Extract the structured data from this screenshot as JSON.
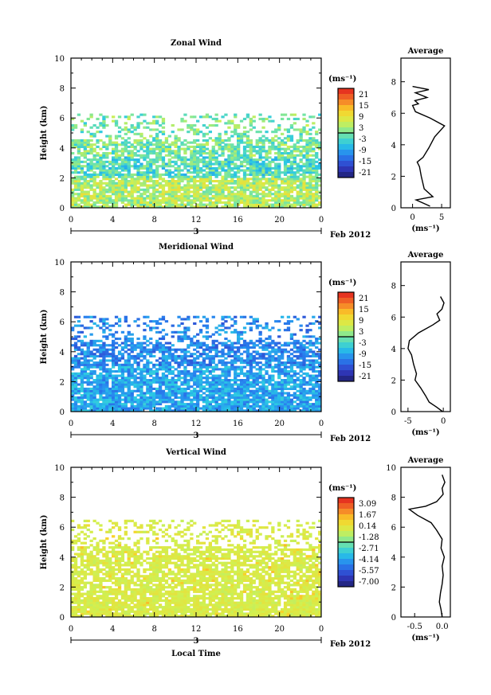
{
  "chart_data": [
    {
      "type": "heatmap",
      "title": "Zonal Wind",
      "ylabel": "Height (km)",
      "xlabel": "",
      "xlim": [
        0,
        24
      ],
      "ylim": [
        0,
        10
      ],
      "x_ticks": [
        "0",
        "4",
        "8",
        "12",
        "16",
        "20",
        "0"
      ],
      "y_ticks": [
        "0",
        "2",
        "4",
        "6",
        "8",
        "10"
      ],
      "date_day": "3",
      "date_label": "Feb 2012",
      "colorbar": {
        "unit": "(ms⁻¹)",
        "ticks": [
          "21",
          "15",
          "9",
          "3",
          "-3",
          "-9",
          "-15",
          "-21"
        ],
        "range": [
          -24,
          24
        ]
      },
      "data_top_km": 6.3,
      "profile": {
        "title": "Average",
        "xlabel": "(ms⁻¹)",
        "x_ticks": [
          "0",
          "5"
        ],
        "xlim": [
          -2,
          6.5
        ],
        "y_ticks": [
          "0",
          "2",
          "4",
          "6",
          "8"
        ],
        "ylim": [
          0,
          9.5
        ],
        "points": [
          [
            3,
            0.1
          ],
          [
            0.6,
            0.5
          ],
          [
            3.5,
            0.7
          ],
          [
            2,
            1.2
          ],
          [
            1.5,
            2
          ],
          [
            1.2,
            2.6
          ],
          [
            0.8,
            2.9
          ],
          [
            1.8,
            3.2
          ],
          [
            2.8,
            3.8
          ],
          [
            3.8,
            4.5
          ],
          [
            5.5,
            5.2
          ],
          [
            3,
            5.7
          ],
          [
            0.5,
            6.1
          ],
          [
            0,
            6.5
          ],
          [
            1,
            6.6
          ],
          [
            0.4,
            6.8
          ],
          [
            2.5,
            7.0
          ],
          [
            0.5,
            7.3
          ],
          [
            2.8,
            7.5
          ],
          [
            0,
            7.7
          ]
        ]
      }
    },
    {
      "type": "heatmap",
      "title": "Meridional Wind",
      "ylabel": "Height (km)",
      "xlabel": "",
      "xlim": [
        0,
        24
      ],
      "ylim": [
        0,
        10
      ],
      "x_ticks": [
        "0",
        "4",
        "8",
        "12",
        "16",
        "20",
        "0"
      ],
      "y_ticks": [
        "0",
        "2",
        "4",
        "6",
        "8",
        "10"
      ],
      "date_day": "3",
      "date_label": "Feb 2012",
      "colorbar": {
        "unit": "(ms⁻¹)",
        "ticks": [
          "21",
          "15",
          "9",
          "3",
          "-3",
          "-9",
          "-15",
          "-21"
        ],
        "range": [
          -24,
          24
        ]
      },
      "data_top_km": 6.4,
      "profile": {
        "title": "Average",
        "xlabel": "(ms⁻¹)",
        "x_ticks": [
          "-5",
          "0"
        ],
        "xlim": [
          -6,
          1
        ],
        "y_ticks": [
          "0",
          "2",
          "4",
          "6",
          "8"
        ],
        "ylim": [
          0,
          9.5
        ],
        "points": [
          [
            -0.1,
            0
          ],
          [
            -1,
            0.3
          ],
          [
            -2,
            0.6
          ],
          [
            -2.5,
            1.0
          ],
          [
            -3.2,
            1.5
          ],
          [
            -4,
            2.0
          ],
          [
            -3.8,
            2.4
          ],
          [
            -4.2,
            3.0
          ],
          [
            -4.5,
            3.6
          ],
          [
            -5,
            4.0
          ],
          [
            -4.8,
            4.5
          ],
          [
            -3.5,
            5.0
          ],
          [
            -1.5,
            5.5
          ],
          [
            -0.5,
            5.8
          ],
          [
            -0.9,
            6.2
          ],
          [
            -0.2,
            6.5
          ],
          [
            0.1,
            6.9
          ],
          [
            -0.4,
            7.3
          ]
        ]
      }
    },
    {
      "type": "heatmap",
      "title": "Vertical Wind",
      "ylabel": "Height (km)",
      "xlabel": "Local Time",
      "xlim": [
        0,
        24
      ],
      "ylim": [
        0,
        10
      ],
      "x_ticks": [
        "0",
        "4",
        "8",
        "12",
        "16",
        "20",
        "0"
      ],
      "y_ticks": [
        "0",
        "2",
        "4",
        "6",
        "8",
        "10"
      ],
      "date_day": "3",
      "date_label": "Feb 2012",
      "colorbar": {
        "unit": "(ms⁻¹)",
        "ticks": [
          "3.09",
          "1.67",
          "0.14",
          "-1.28",
          "-2.71",
          "-4.14",
          "-5.57",
          "-7.00"
        ],
        "range": [
          -7.7,
          3.8
        ]
      },
      "data_top_km": 6.5,
      "profile": {
        "title": "Average",
        "xlabel": "(ms⁻¹)",
        "x_ticks": [
          "-0.5",
          "0.0"
        ],
        "xlim": [
          -0.75,
          0.15
        ],
        "y_ticks": [
          "0",
          "2",
          "4",
          "6",
          "8",
          "10"
        ],
        "ylim": [
          0,
          10
        ],
        "points": [
          [
            0,
            0
          ],
          [
            -0.02,
            0.5
          ],
          [
            -0.05,
            1.0
          ],
          [
            -0.03,
            1.6
          ],
          [
            0,
            2.2
          ],
          [
            0.02,
            2.8
          ],
          [
            0,
            3.4
          ],
          [
            0.04,
            4.0
          ],
          [
            -0.02,
            4.6
          ],
          [
            0,
            5.2
          ],
          [
            -0.1,
            5.8
          ],
          [
            -0.2,
            6.3
          ],
          [
            -0.45,
            6.8
          ],
          [
            -0.6,
            7.2
          ],
          [
            -0.3,
            7.4
          ],
          [
            -0.1,
            7.7
          ],
          [
            0.02,
            8.2
          ],
          [
            0,
            8.6
          ],
          [
            0.05,
            9.0
          ],
          [
            0,
            9.5
          ]
        ]
      }
    }
  ]
}
